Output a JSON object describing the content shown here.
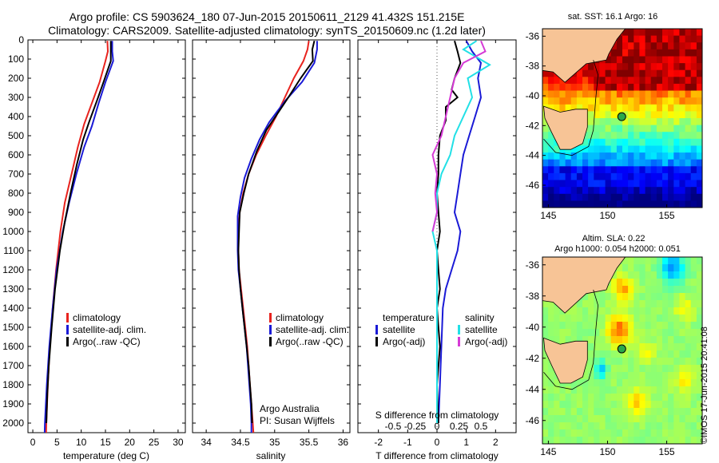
{
  "header": {
    "line1": "Argo profile: CS 5903624_180 07-Jun-2015 20150611_2129 41.432S 151.215E",
    "line2": "Climatology: CARS2009. Satellite-adjusted climatology: synTS_20150609.nc (1.2d later)"
  },
  "colors": {
    "clim": "#e8231e",
    "sat": "#1a1ad6",
    "argo": "#000000",
    "sat_s": "#22e0e6",
    "argo_s": "#d63ad6",
    "land": "#f7c496",
    "deep": "#0c1f8c"
  },
  "chart_data": [
    {
      "type": "line",
      "id": "temperature-profile",
      "xlabel": "temperature (deg C)",
      "ylabel": "",
      "xlim": [
        -1,
        31.5
      ],
      "ylim": [
        0,
        2050
      ],
      "y_reversed": true,
      "x_ticks": [
        0,
        5,
        10,
        15,
        20,
        25,
        30
      ],
      "y_ticks": [
        0,
        100,
        200,
        300,
        400,
        500,
        600,
        700,
        800,
        900,
        1000,
        1100,
        1200,
        1300,
        1400,
        1500,
        1600,
        1700,
        1800,
        1900,
        2000
      ],
      "legend": [
        "climatology",
        "satellite-adj. clim.",
        "Argo(..raw -QC)"
      ],
      "series": [
        {
          "name": "climatology",
          "color_key": "clim",
          "points": [
            [
              15.4,
              5
            ],
            [
              15.5,
              60
            ],
            [
              15.0,
              110
            ],
            [
              13.8,
              220
            ],
            [
              12.2,
              330
            ],
            [
              10.6,
              440
            ],
            [
              9.3,
              560
            ],
            [
              8.0,
              700
            ],
            [
              6.6,
              850
            ],
            [
              5.7,
              1000
            ],
            [
              4.8,
              1200
            ],
            [
              4.1,
              1400
            ],
            [
              3.5,
              1600
            ],
            [
              3.1,
              1800
            ],
            [
              2.8,
              2000
            ],
            [
              2.75,
              2050
            ]
          ]
        },
        {
          "name": "satellite-adj. clim.",
          "color_key": "sat",
          "points": [
            [
              16.4,
              5
            ],
            [
              16.4,
              60
            ],
            [
              16.6,
              110
            ],
            [
              15.0,
              220
            ],
            [
              13.6,
              330
            ],
            [
              12.2,
              450
            ],
            [
              10.6,
              560
            ],
            [
              9.0,
              700
            ],
            [
              7.5,
              850
            ],
            [
              6.2,
              1000
            ],
            [
              4.9,
              1200
            ],
            [
              4.1,
              1400
            ],
            [
              3.4,
              1600
            ],
            [
              2.9,
              1800
            ],
            [
              2.5,
              2000
            ],
            [
              2.45,
              2050
            ]
          ]
        },
        {
          "name": "Argo(..raw -QC)",
          "color_key": "argo",
          "points": [
            [
              16.1,
              5
            ],
            [
              16.1,
              60
            ],
            [
              16.1,
              110
            ],
            [
              14.6,
              220
            ],
            [
              13.2,
              320
            ],
            [
              11.6,
              430
            ],
            [
              10.4,
              520
            ],
            [
              9.1,
              650
            ],
            [
              7.8,
              800
            ],
            [
              6.6,
              950
            ],
            [
              5.6,
              1100
            ],
            [
              4.6,
              1300
            ],
            [
              3.9,
              1500
            ],
            [
              3.3,
              1700
            ],
            [
              3.0,
              1850
            ],
            [
              2.8,
              2000
            ]
          ]
        }
      ]
    },
    {
      "type": "line",
      "id": "salinity-profile",
      "xlabel": "salinity",
      "xlim": [
        33.8,
        36.1
      ],
      "ylim": [
        0,
        2050
      ],
      "y_reversed": true,
      "x_ticks": [
        34,
        34.5,
        35,
        35.5,
        36
      ],
      "legend": [
        "climatology",
        "satellite-adj. clim.",
        "Argo(..raw -QC)"
      ],
      "annotation": [
        "Argo Australia",
        "PI: Susan Wijffels"
      ],
      "series": [
        {
          "name": "climatology",
          "color_key": "clim",
          "points": [
            [
              35.5,
              5
            ],
            [
              35.48,
              50
            ],
            [
              35.42,
              110
            ],
            [
              35.28,
              200
            ],
            [
              35.15,
              300
            ],
            [
              35.02,
              400
            ],
            [
              34.87,
              500
            ],
            [
              34.73,
              600
            ],
            [
              34.62,
              700
            ],
            [
              34.54,
              800
            ],
            [
              34.49,
              900
            ],
            [
              34.47,
              1000
            ],
            [
              34.47,
              1100
            ],
            [
              34.48,
              1200
            ],
            [
              34.51,
              1300
            ],
            [
              34.54,
              1400
            ],
            [
              34.57,
              1500
            ],
            [
              34.6,
              1600
            ],
            [
              34.62,
              1700
            ],
            [
              34.64,
              1800
            ],
            [
              34.66,
              1900
            ],
            [
              34.68,
              2000
            ],
            [
              34.69,
              2050
            ]
          ]
        },
        {
          "name": "satellite-adj. clim.",
          "color_key": "sat",
          "points": [
            [
              35.62,
              5
            ],
            [
              35.62,
              50
            ],
            [
              35.58,
              120
            ],
            [
              35.4,
              220
            ],
            [
              35.15,
              320
            ],
            [
              34.92,
              430
            ],
            [
              34.78,
              520
            ],
            [
              34.66,
              620
            ],
            [
              34.56,
              720
            ],
            [
              34.5,
              820
            ],
            [
              34.46,
              920
            ],
            [
              34.46,
              1000
            ],
            [
              34.46,
              1100
            ],
            [
              34.47,
              1200
            ],
            [
              34.5,
              1300
            ],
            [
              34.53,
              1400
            ],
            [
              34.56,
              1500
            ],
            [
              34.59,
              1600
            ],
            [
              34.61,
              1700
            ],
            [
              34.63,
              1800
            ],
            [
              34.65,
              1900
            ],
            [
              34.66,
              2000
            ],
            [
              34.66,
              2050
            ]
          ]
        },
        {
          "name": "Argo(..raw -QC)",
          "color_key": "argo",
          "points": [
            [
              35.58,
              5
            ],
            [
              35.55,
              50
            ],
            [
              35.56,
              110
            ],
            [
              35.38,
              200
            ],
            [
              35.2,
              300
            ],
            [
              35.05,
              380
            ],
            [
              34.88,
              470
            ],
            [
              34.74,
              580
            ],
            [
              34.62,
              700
            ],
            [
              34.55,
              800
            ],
            [
              34.49,
              900
            ],
            [
              34.48,
              1000
            ],
            [
              34.47,
              1100
            ],
            [
              34.48,
              1200
            ],
            [
              34.5,
              1300
            ],
            [
              34.53,
              1400
            ],
            [
              34.56,
              1500
            ],
            [
              34.59,
              1600
            ],
            [
              34.62,
              1700
            ],
            [
              34.64,
              1800
            ],
            [
              34.66,
              1900
            ],
            [
              34.67,
              2000
            ]
          ]
        }
      ]
    },
    {
      "type": "line",
      "id": "difference-profile",
      "xlabel": "T difference from climatology",
      "xlabel_top": "S difference from climatology",
      "xlim": [
        -2.7,
        2.7
      ],
      "ylim": [
        0,
        2050
      ],
      "y_reversed": true,
      "x_ticks_T": [
        -2,
        -1,
        0,
        1,
        2
      ],
      "x_ticks_S": [
        "-0.5",
        "-0.25",
        "0",
        "0.25",
        "0.5"
      ],
      "legend_T_title": "temperature",
      "legend_S_title": "salinity",
      "legend": [
        "satellite",
        "Argo(-adj)",
        "satellite",
        "Argo(-adj)"
      ],
      "series": [
        {
          "name": "satellite",
          "group": "temperature",
          "color_key": "sat",
          "points": [
            [
              1.0,
              5
            ],
            [
              1.2,
              60
            ],
            [
              1.5,
              120
            ],
            [
              1.4,
              200
            ],
            [
              1.5,
              300
            ],
            [
              1.3,
              400
            ],
            [
              1.1,
              500
            ],
            [
              0.9,
              600
            ],
            [
              0.8,
              700
            ],
            [
              0.7,
              800
            ],
            [
              0.6,
              900
            ],
            [
              0.8,
              1000
            ],
            [
              0.7,
              1100
            ],
            [
              0.5,
              1200
            ],
            [
              0.3,
              1300
            ],
            [
              0.2,
              1400
            ],
            [
              0.15,
              1600
            ],
            [
              0.1,
              1800
            ],
            [
              0.05,
              2000
            ]
          ]
        },
        {
          "name": "Argo(-adj)",
          "group": "temperature",
          "color_key": "argo",
          "points": [
            [
              0.6,
              5
            ],
            [
              0.7,
              60
            ],
            [
              0.8,
              120
            ],
            [
              0.6,
              200
            ],
            [
              0.5,
              260
            ],
            [
              0.7,
              300
            ],
            [
              0.3,
              350
            ],
            [
              0.3,
              420
            ],
            [
              0.1,
              500
            ],
            [
              0.05,
              600
            ],
            [
              0.05,
              700
            ],
            [
              0.0,
              800
            ],
            [
              0.05,
              900
            ],
            [
              0.1,
              1000
            ],
            [
              0.0,
              1100
            ],
            [
              0.05,
              1200
            ],
            [
              0.1,
              1300
            ],
            [
              0.0,
              1400
            ],
            [
              0.05,
              1500
            ],
            [
              0.1,
              1600
            ],
            [
              0.0,
              1800
            ],
            [
              0.05,
              2000
            ]
          ]
        },
        {
          "name": "satellite",
          "group": "salinity",
          "color_key": "sat_s",
          "points": [
            [
              0.45,
              5
            ],
            [
              0.3,
              50
            ],
            [
              0.6,
              130
            ],
            [
              0.35,
              200
            ],
            [
              0.4,
              300
            ],
            [
              0.3,
              400
            ],
            [
              0.2,
              500
            ],
            [
              0.15,
              600
            ],
            [
              0.05,
              700
            ],
            [
              0.0,
              800
            ],
            [
              0.0,
              900
            ],
            [
              -0.05,
              1000
            ],
            [
              0.0,
              1100
            ],
            [
              0.0,
              1200
            ],
            [
              0.0,
              1400
            ],
            [
              0.0,
              1600
            ],
            [
              0.0,
              1800
            ],
            [
              0.0,
              2000
            ]
          ]
        },
        {
          "name": "Argo(-adj)",
          "group": "salinity",
          "color_key": "argo_s",
          "points": [
            [
              0.5,
              5
            ],
            [
              0.55,
              60
            ],
            [
              0.3,
              120
            ],
            [
              0.2,
              200
            ],
            [
              0.15,
              300
            ],
            [
              0.1,
              400
            ],
            [
              0.05,
              500
            ],
            [
              -0.05,
              600
            ],
            [
              0.0,
              700
            ],
            [
              -0.02,
              800
            ],
            [
              0.0,
              900
            ],
            [
              -0.05,
              1000
            ]
          ]
        }
      ]
    },
    {
      "type": "heatmap",
      "id": "sst-map",
      "title": "sat. SST: 16.1  Argo: 16",
      "xlim": [
        144.5,
        158
      ],
      "ylim": [
        -47.5,
        -35.5
      ],
      "x_ticks": [
        145,
        150,
        155
      ],
      "y_ticks": [
        -36,
        -38,
        -40,
        -42,
        -44,
        -46
      ],
      "x_tick_labels": [
        "145",
        "150",
        "155"
      ],
      "y_tick_labels": [
        "-36",
        "-38",
        "-40",
        "-42",
        "-44",
        "-46"
      ],
      "marker": [
        151.2,
        -41.4
      ],
      "colormap": "jet"
    },
    {
      "type": "heatmap",
      "id": "sla-map",
      "title": "Altim. SLA: 0.22",
      "subtitle": "Argo h1000: 0.054 h2000: 0.051",
      "xlim": [
        144.5,
        158
      ],
      "ylim": [
        -47.5,
        -35.5
      ],
      "x_ticks": [
        145,
        150,
        155
      ],
      "y_ticks": [
        -36,
        -38,
        -40,
        -42,
        -44,
        -46
      ],
      "x_tick_labels": [
        "145",
        "150",
        "155"
      ],
      "y_tick_labels": [
        "-36",
        "-38",
        "-40",
        "-42",
        "-44",
        "-46"
      ],
      "marker": [
        151.2,
        -41.4
      ],
      "colormap": "jet"
    }
  ],
  "stamp": "©IMOS 17-Jun-2015 20:41:08"
}
